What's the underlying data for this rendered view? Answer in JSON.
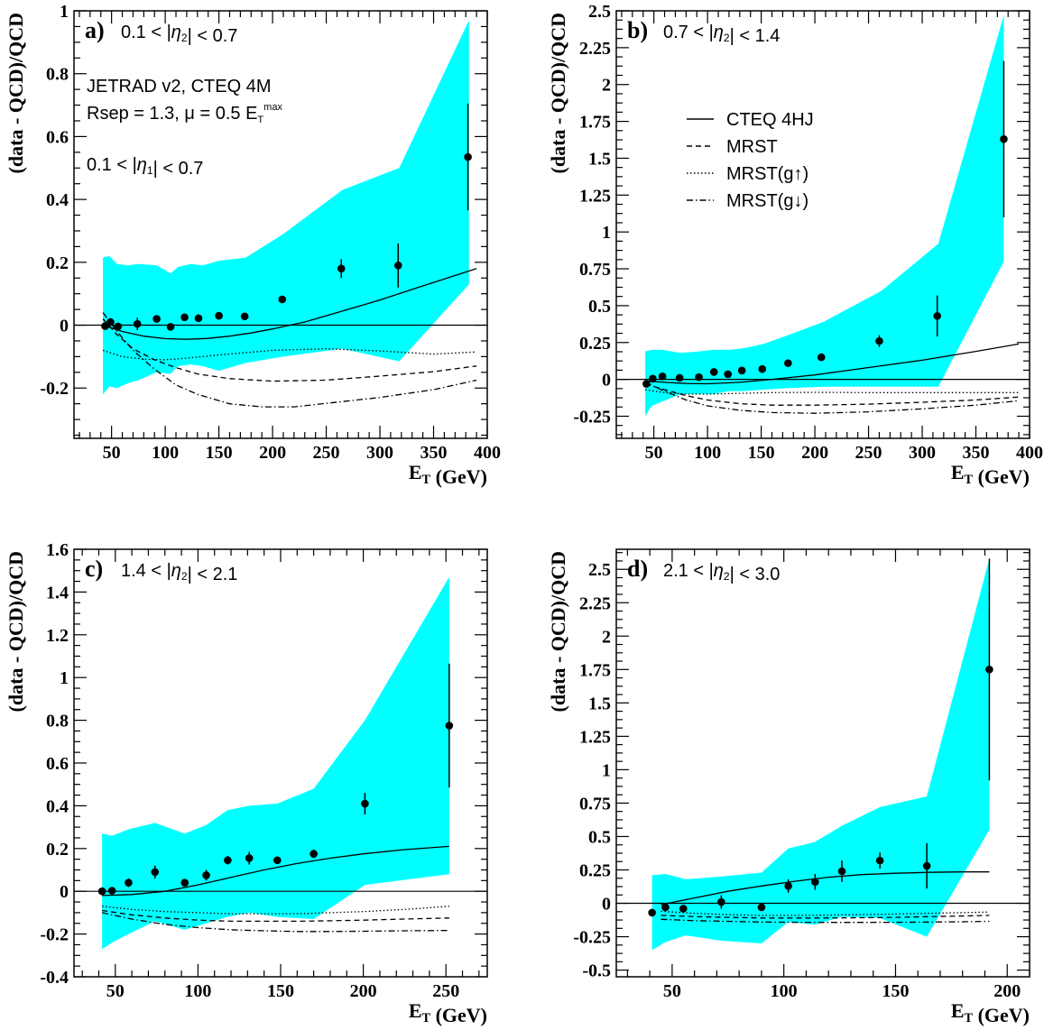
{
  "colors": {
    "band": "#00ffff",
    "ink": "#000000"
  },
  "chart_data": [
    {
      "type": "scatter",
      "panel": "a)",
      "region_label": "0.1 < |η₂| < 0.7",
      "annotations": [
        "JETRAD v2, CTEQ 4M",
        "Rsep = 1.3, μ = 0.5 E_T^max",
        "0.1 < |η₁| < 0.7"
      ],
      "xlabel": "E_T (GeV)",
      "ylabel": "(data - QCD)/QCD",
      "xlim": [
        15,
        400
      ],
      "ylim": [
        -0.36,
        1.0
      ],
      "xticks": [
        50,
        100,
        150,
        200,
        250,
        300,
        350,
        400
      ],
      "yticks": [
        -0.2,
        0,
        0.2,
        0.4,
        0.6,
        0.8,
        1
      ],
      "ytick_labels": [
        "-0.2",
        "0",
        "0.2",
        "0.4",
        "0.6",
        "0.8",
        "1"
      ],
      "grid": false,
      "data_points": [
        {
          "x": 44,
          "y": -0.003,
          "err": 0
        },
        {
          "x": 49,
          "y": 0.01,
          "err": 0
        },
        {
          "x": 56,
          "y": -0.004,
          "err": 0
        },
        {
          "x": 74,
          "y": 0.004,
          "err": 0.02
        },
        {
          "x": 92,
          "y": 0.02,
          "err": 0
        },
        {
          "x": 105,
          "y": -0.005,
          "err": 0
        },
        {
          "x": 118,
          "y": 0.025,
          "err": 0
        },
        {
          "x": 131,
          "y": 0.022,
          "err": 0
        },
        {
          "x": 150,
          "y": 0.03,
          "err": 0
        },
        {
          "x": 174,
          "y": 0.028,
          "err": 0
        },
        {
          "x": 209,
          "y": 0.082,
          "err": 0
        },
        {
          "x": 264,
          "y": 0.18,
          "err": 0.03
        },
        {
          "x": 317,
          "y": 0.19,
          "err": 0.07
        },
        {
          "x": 382,
          "y": 0.535,
          "err": 0.17
        }
      ],
      "band": {
        "x": [
          42,
          48,
          55,
          65,
          75,
          92,
          105,
          112,
          124,
          135,
          150,
          175,
          210,
          265,
          318,
          383
        ],
        "upper": [
          0.215,
          0.22,
          0.195,
          0.19,
          0.195,
          0.19,
          0.165,
          0.185,
          0.195,
          0.19,
          0.205,
          0.215,
          0.29,
          0.43,
          0.5,
          0.97
        ],
        "lower": [
          -0.22,
          -0.195,
          -0.2,
          -0.185,
          -0.175,
          -0.15,
          -0.155,
          -0.13,
          -0.125,
          -0.13,
          -0.145,
          -0.12,
          -0.1,
          -0.075,
          -0.115,
          0.13
        ]
      },
      "series": [
        {
          "name": "CTEQ 4HJ",
          "style": "solid",
          "x": [
            42,
            60,
            80,
            100,
            120,
            140,
            160,
            180,
            200,
            230,
            260,
            300,
            340,
            390
          ],
          "y": [
            0.0,
            -0.02,
            -0.035,
            -0.043,
            -0.045,
            -0.042,
            -0.035,
            -0.025,
            -0.012,
            0.01,
            0.04,
            0.08,
            0.125,
            0.18
          ]
        },
        {
          "name": "MRST",
          "style": "dash",
          "x": [
            42,
            55,
            70,
            90,
            110,
            130,
            160,
            200,
            250,
            300,
            350,
            390
          ],
          "y": [
            0.02,
            -0.03,
            -0.075,
            -0.11,
            -0.135,
            -0.155,
            -0.17,
            -0.178,
            -0.175,
            -0.162,
            -0.148,
            -0.13
          ]
        },
        {
          "name": "MRST(g↑)",
          "style": "dot",
          "x": [
            42,
            60,
            80,
            100,
            120,
            150,
            200,
            250,
            300,
            350,
            390
          ],
          "y": [
            -0.08,
            -0.1,
            -0.108,
            -0.11,
            -0.105,
            -0.095,
            -0.08,
            -0.075,
            -0.082,
            -0.092,
            -0.085
          ]
        },
        {
          "name": "MRST(g↓)",
          "style": "dashdot",
          "x": [
            42,
            55,
            70,
            90,
            110,
            130,
            160,
            190,
            220,
            260,
            300,
            350,
            390
          ],
          "y": [
            0.04,
            -0.02,
            -0.08,
            -0.14,
            -0.19,
            -0.22,
            -0.25,
            -0.26,
            -0.26,
            -0.245,
            -0.23,
            -0.205,
            -0.175
          ]
        }
      ]
    },
    {
      "type": "scatter",
      "panel": "b)",
      "region_label": "0.7 < |η₂| < 1.4",
      "legend": [
        "CTEQ 4HJ",
        "MRST",
        "MRST(g↑)",
        "MRST(g↓)"
      ],
      "xlabel": "E_T (GeV)",
      "ylabel": "(data - QCD)/QCD",
      "xlim": [
        15,
        400
      ],
      "ylim": [
        -0.4,
        2.5
      ],
      "xticks": [
        50,
        100,
        150,
        200,
        250,
        300,
        350,
        400
      ],
      "yticks": [
        -0.25,
        0,
        0.25,
        0.5,
        0.75,
        1,
        1.25,
        1.5,
        1.75,
        2,
        2.25,
        2.5
      ],
      "ytick_labels": [
        "-0.25",
        "0",
        "0.25",
        "0.5",
        "0.75",
        "1",
        "1.25",
        "1.5",
        "1.75",
        "2",
        "2.25",
        "2.5"
      ],
      "grid": false,
      "data_points": [
        {
          "x": 43,
          "y": -0.03,
          "err": 0
        },
        {
          "x": 49,
          "y": 0.005,
          "err": 0
        },
        {
          "x": 58,
          "y": 0.02,
          "err": 0
        },
        {
          "x": 74,
          "y": 0.01,
          "err": 0
        },
        {
          "x": 92,
          "y": 0.015,
          "err": 0
        },
        {
          "x": 106,
          "y": 0.05,
          "err": 0
        },
        {
          "x": 119,
          "y": 0.035,
          "err": 0
        },
        {
          "x": 132,
          "y": 0.06,
          "err": 0
        },
        {
          "x": 151,
          "y": 0.07,
          "err": 0
        },
        {
          "x": 175,
          "y": 0.11,
          "err": 0
        },
        {
          "x": 206,
          "y": 0.15,
          "err": 0
        },
        {
          "x": 260,
          "y": 0.26,
          "err": 0.04
        },
        {
          "x": 314,
          "y": 0.43,
          "err": 0.14
        },
        {
          "x": 376,
          "y": 1.63,
          "err": 0.53
        }
      ],
      "band": {
        "x": [
          42,
          48,
          58,
          75,
          92,
          105,
          120,
          133,
          152,
          175,
          208,
          262,
          315,
          376
        ],
        "upper": [
          0.19,
          0.2,
          0.2,
          0.18,
          0.19,
          0.2,
          0.2,
          0.21,
          0.24,
          0.3,
          0.39,
          0.6,
          0.92,
          2.47
        ],
        "lower": [
          -0.25,
          -0.18,
          -0.15,
          -0.1,
          -0.1,
          -0.1,
          -0.08,
          -0.08,
          -0.07,
          -0.06,
          -0.05,
          -0.05,
          -0.05,
          0.8
        ]
      },
      "series": [
        {
          "name": "CTEQ 4HJ",
          "style": "solid",
          "x": [
            42,
            60,
            80,
            100,
            130,
            160,
            200,
            250,
            300,
            350,
            390
          ],
          "y": [
            -0.01,
            -0.02,
            -0.028,
            -0.03,
            -0.02,
            0.0,
            0.03,
            0.08,
            0.13,
            0.19,
            0.24
          ]
        },
        {
          "name": "MRST",
          "style": "dash",
          "x": [
            42,
            60,
            80,
            100,
            130,
            160,
            200,
            250,
            300,
            350,
            390
          ],
          "y": [
            -0.03,
            -0.07,
            -0.11,
            -0.14,
            -0.165,
            -0.175,
            -0.175,
            -0.168,
            -0.155,
            -0.14,
            -0.12
          ]
        },
        {
          "name": "MRST(g↑)",
          "style": "dot",
          "x": [
            42,
            60,
            80,
            100,
            130,
            160,
            200,
            250,
            300,
            350,
            390
          ],
          "y": [
            -0.07,
            -0.09,
            -0.1,
            -0.1,
            -0.095,
            -0.09,
            -0.088,
            -0.09,
            -0.09,
            -0.09,
            -0.09
          ]
        },
        {
          "name": "MRST(g↓)",
          "style": "dashdot",
          "x": [
            42,
            60,
            80,
            100,
            130,
            160,
            200,
            250,
            300,
            350,
            390
          ],
          "y": [
            -0.02,
            -0.08,
            -0.14,
            -0.18,
            -0.21,
            -0.225,
            -0.23,
            -0.22,
            -0.2,
            -0.175,
            -0.145
          ]
        }
      ]
    },
    {
      "type": "scatter",
      "panel": "c)",
      "region_label": "1.4 < |η₂| < 2.1",
      "xlabel": "E_T (GeV)",
      "ylabel": "(data - QCD)/QCD",
      "xlim": [
        25,
        275
      ],
      "ylim": [
        -0.4,
        1.6
      ],
      "xticks": [
        50,
        100,
        150,
        200,
        250
      ],
      "yticks": [
        -0.4,
        -0.2,
        0,
        0.2,
        0.4,
        0.6,
        0.8,
        1,
        1.2,
        1.4,
        1.6
      ],
      "ytick_labels": [
        "-0.4",
        "-0.2",
        "0",
        "0.2",
        "0.4",
        "0.6",
        "0.8",
        "1",
        "1.2",
        "1.4",
        "1.6"
      ],
      "grid": false,
      "data_points": [
        {
          "x": 42,
          "y": 0.0,
          "err": 0
        },
        {
          "x": 48,
          "y": 0.003,
          "err": 0
        },
        {
          "x": 58,
          "y": 0.04,
          "err": 0.02
        },
        {
          "x": 74,
          "y": 0.09,
          "err": 0.03
        },
        {
          "x": 92,
          "y": 0.04,
          "err": 0
        },
        {
          "x": 105,
          "y": 0.075,
          "err": 0.025
        },
        {
          "x": 118,
          "y": 0.145,
          "err": 0.02
        },
        {
          "x": 131,
          "y": 0.155,
          "err": 0.03
        },
        {
          "x": 148,
          "y": 0.145,
          "err": 0
        },
        {
          "x": 170,
          "y": 0.175,
          "err": 0.02
        },
        {
          "x": 201,
          "y": 0.41,
          "err": 0.05
        },
        {
          "x": 252,
          "y": 0.775,
          "err": 0.29
        }
      ],
      "band": {
        "x": [
          42,
          48,
          58,
          74,
          92,
          105,
          118,
          131,
          148,
          170,
          201,
          252
        ],
        "upper": [
          0.27,
          0.26,
          0.29,
          0.32,
          0.27,
          0.31,
          0.38,
          0.4,
          0.41,
          0.48,
          0.8,
          1.47
        ],
        "lower": [
          -0.27,
          -0.24,
          -0.2,
          -0.14,
          -0.18,
          -0.15,
          -0.12,
          -0.1,
          -0.12,
          -0.13,
          0.03,
          0.08
        ]
      },
      "series": [
        {
          "name": "CTEQ 4HJ",
          "style": "solid",
          "x": [
            42,
            60,
            80,
            100,
            120,
            140,
            160,
            180,
            200,
            225,
            252
          ],
          "y": [
            -0.02,
            -0.015,
            0.0,
            0.03,
            0.065,
            0.1,
            0.13,
            0.155,
            0.175,
            0.195,
            0.21
          ]
        },
        {
          "name": "MRST",
          "style": "dash",
          "x": [
            42,
            60,
            80,
            100,
            120,
            140,
            160,
            180,
            200,
            225,
            252
          ],
          "y": [
            -0.09,
            -0.11,
            -0.125,
            -0.135,
            -0.14,
            -0.14,
            -0.14,
            -0.138,
            -0.135,
            -0.13,
            -0.125
          ]
        },
        {
          "name": "MRST(g↑)",
          "style": "dot",
          "x": [
            42,
            60,
            80,
            100,
            120,
            140,
            160,
            180,
            200,
            225,
            252
          ],
          "y": [
            -0.07,
            -0.085,
            -0.095,
            -0.1,
            -0.105,
            -0.105,
            -0.105,
            -0.1,
            -0.095,
            -0.085,
            -0.07
          ]
        },
        {
          "name": "MRST(g↓)",
          "style": "dashdot",
          "x": [
            42,
            60,
            80,
            100,
            120,
            140,
            160,
            180,
            200,
            225,
            252
          ],
          "y": [
            -0.1,
            -0.13,
            -0.155,
            -0.17,
            -0.18,
            -0.185,
            -0.188,
            -0.188,
            -0.187,
            -0.185,
            -0.183
          ]
        }
      ]
    },
    {
      "type": "scatter",
      "panel": "d)",
      "region_label": "2.1 < |η₂| < 3.0",
      "xlabel": "E_T (GeV)",
      "ylabel": "(data - QCD)/QCD",
      "xlim": [
        25,
        210
      ],
      "ylim": [
        -0.55,
        2.65
      ],
      "xticks": [
        50,
        100,
        150,
        200
      ],
      "yticks": [
        -0.5,
        -0.25,
        0,
        0.25,
        0.5,
        0.75,
        1,
        1.25,
        1.5,
        1.75,
        2,
        2.25,
        2.5
      ],
      "ytick_labels": [
        "-0.5",
        "-0.25",
        "0",
        "0.25",
        "0.5",
        "0.75",
        "1",
        "1.25",
        "1.5",
        "1.75",
        "2",
        "2.25",
        "2.5"
      ],
      "grid": false,
      "data_points": [
        {
          "x": 41,
          "y": -0.07,
          "err": 0
        },
        {
          "x": 47,
          "y": -0.03,
          "err": 0
        },
        {
          "x": 55,
          "y": -0.04,
          "err": 0
        },
        {
          "x": 72,
          "y": 0.01,
          "err": 0.05
        },
        {
          "x": 90,
          "y": -0.03,
          "err": 0
        },
        {
          "x": 102,
          "y": 0.13,
          "err": 0.05
        },
        {
          "x": 114,
          "y": 0.16,
          "err": 0.06
        },
        {
          "x": 126,
          "y": 0.24,
          "err": 0.08
        },
        {
          "x": 143,
          "y": 0.32,
          "err": 0.06
        },
        {
          "x": 164,
          "y": 0.28,
          "err": 0.17
        },
        {
          "x": 192,
          "y": 1.75,
          "err": 0.83
        }
      ],
      "band": {
        "x": [
          41,
          47,
          56,
          72,
          90,
          102,
          114,
          126,
          143,
          164,
          192
        ],
        "upper": [
          0.21,
          0.22,
          0.18,
          0.2,
          0.23,
          0.41,
          0.46,
          0.58,
          0.72,
          0.8,
          2.58
        ],
        "lower": [
          -0.35,
          -0.29,
          -0.24,
          -0.28,
          -0.3,
          -0.14,
          -0.16,
          -0.1,
          -0.11,
          -0.25,
          0.55
        ]
      },
      "series": [
        {
          "name": "CTEQ 4HJ",
          "style": "solid",
          "x": [
            45,
            60,
            75,
            90,
            105,
            120,
            135,
            150,
            165,
            180,
            192
          ],
          "y": [
            -0.01,
            0.04,
            0.09,
            0.13,
            0.165,
            0.195,
            0.215,
            0.225,
            0.232,
            0.235,
            0.235
          ]
        },
        {
          "name": "MRST",
          "style": "dash",
          "x": [
            45,
            60,
            75,
            90,
            105,
            120,
            135,
            150,
            165,
            180,
            192
          ],
          "y": [
            -0.09,
            -0.1,
            -0.105,
            -0.11,
            -0.11,
            -0.11,
            -0.108,
            -0.105,
            -0.1,
            -0.095,
            -0.09
          ]
        },
        {
          "name": "MRST(g↑)",
          "style": "dot",
          "x": [
            45,
            60,
            75,
            90,
            105,
            120,
            135,
            150,
            165,
            180,
            192
          ],
          "y": [
            -0.06,
            -0.075,
            -0.085,
            -0.09,
            -0.09,
            -0.088,
            -0.085,
            -0.08,
            -0.075,
            -0.07,
            -0.065
          ]
        },
        {
          "name": "MRST(g↓)",
          "style": "dashdot",
          "x": [
            45,
            60,
            75,
            90,
            105,
            120,
            135,
            150,
            165,
            180,
            192
          ],
          "y": [
            -0.12,
            -0.13,
            -0.135,
            -0.14,
            -0.142,
            -0.143,
            -0.143,
            -0.142,
            -0.14,
            -0.138,
            -0.135
          ]
        }
      ]
    }
  ]
}
